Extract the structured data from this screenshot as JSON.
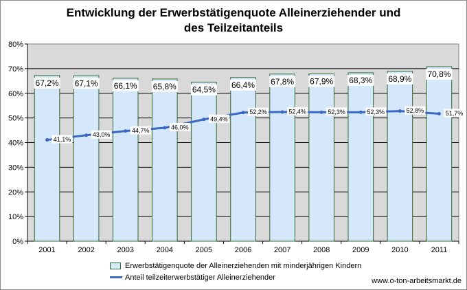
{
  "chart_data": {
    "type": "bar",
    "title": [
      "Entwicklung der Erwerbstätigenquote Alleinerziehender und",
      "des Teilzeitanteils"
    ],
    "categories": [
      "2001",
      "2002",
      "2003",
      "2004",
      "2005",
      "2006",
      "2007",
      "2008",
      "2009",
      "2010",
      "2011"
    ],
    "series": [
      {
        "name": "Erwerbstätigenquote der Alleinerziehenden  mit minderjährigen  Kindern",
        "kind": "bar",
        "values": [
          67.2,
          67.1,
          66.1,
          65.8,
          64.5,
          66.4,
          67.8,
          67.9,
          68.3,
          68.9,
          70.8
        ],
        "labels": [
          "67,2%",
          "67,1%",
          "66,1%",
          "65,8%",
          "64,5%",
          "66,4%",
          "67,8%",
          "67,9%",
          "68,3%",
          "68,9%",
          "70,8%"
        ],
        "color": "#d5e7fb",
        "edge_color": "#2e6b2e"
      },
      {
        "name": "Anteil teilzeiterwerbstätiger  Alleinerziehender",
        "kind": "line",
        "values": [
          41.1,
          43.0,
          44.7,
          46.0,
          49.4,
          52.2,
          52.4,
          52.3,
          52.3,
          52.8,
          51.7
        ],
        "labels": [
          "41,1%",
          "43,0%",
          "44,7%",
          "46,0%",
          "49,4%",
          "52,2%",
          "52,4%",
          "52,3%",
          "52,3%",
          "52,8%",
          "51,7%"
        ],
        "color": "#3a68c2"
      }
    ],
    "ylim": [
      0,
      80
    ],
    "yticks": [
      0,
      10,
      20,
      30,
      40,
      50,
      60,
      70,
      80
    ],
    "ytick_labels": [
      "0%",
      "10%",
      "20%",
      "30%",
      "40%",
      "50%",
      "60%",
      "70%",
      "80%"
    ],
    "grid": true,
    "plot_background": "#d9d9d9",
    "legend_position": "bottom"
  },
  "source": "www.o-ton-arbeitsmarkt.de"
}
